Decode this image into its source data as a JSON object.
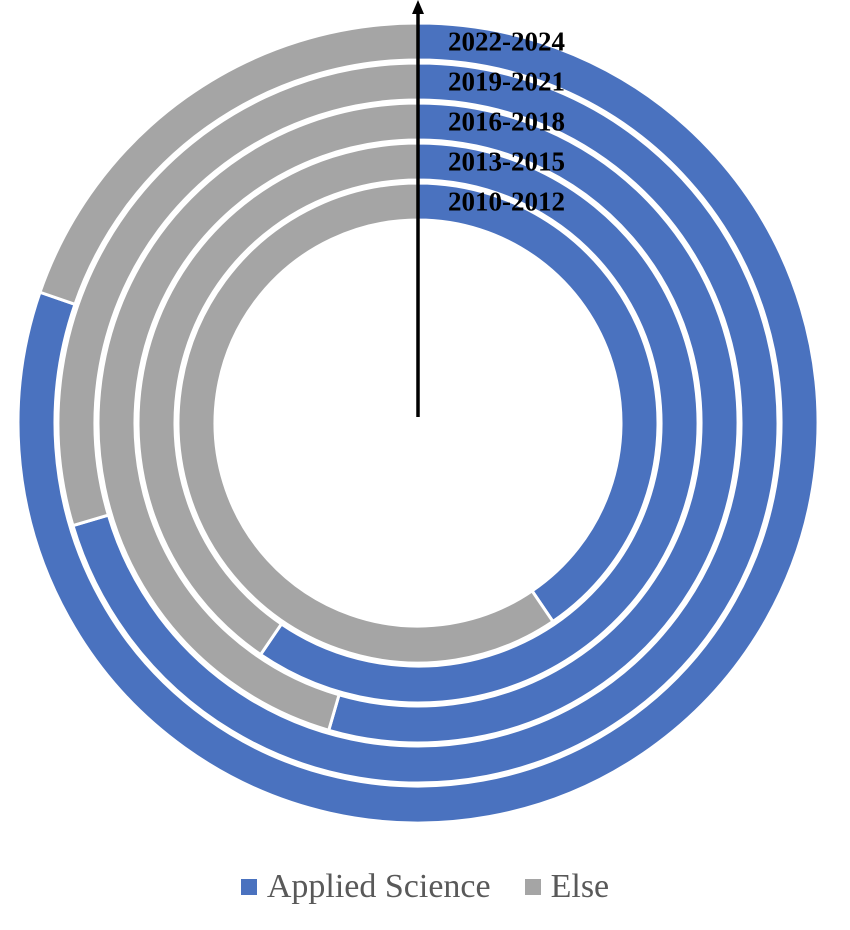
{
  "chart_data": {
    "type": "pie",
    "subtype": "multi-ring donut (concentric rings)",
    "title": "",
    "rings": [
      "2010-2012",
      "2013-2015",
      "2016-2018",
      "2019-2021",
      "2022-2024"
    ],
    "ring_order": "inner to outer",
    "series": [
      {
        "name": "Applied Science",
        "values": [
          40.5,
          59.5,
          54.5,
          70.4,
          80.3
        ]
      },
      {
        "name": "Else",
        "values": [
          59.5,
          40.5,
          45.5,
          29.6,
          19.7
        ]
      }
    ],
    "units": "percent",
    "legend_position": "bottom",
    "start_angle": "12 o'clock, clockwise",
    "arrow": "vertical arrow from center to top"
  },
  "colors": {
    "applied_science": "#4a72bf",
    "else": "#a5a5a5",
    "separator": "#ffffff",
    "label_text": "#000000",
    "legend_text": "#595959"
  }
}
